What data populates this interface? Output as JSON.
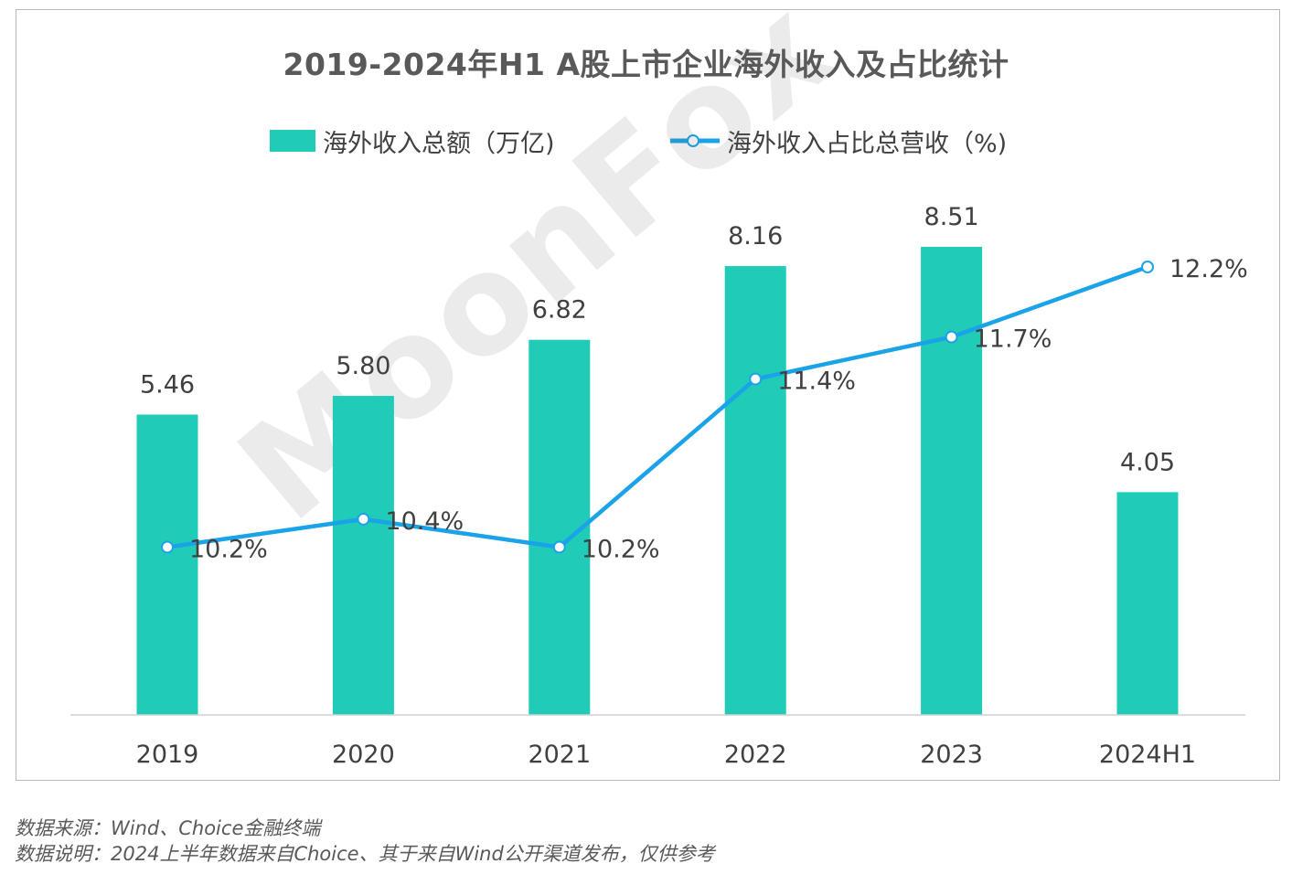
{
  "chart_data": {
    "type": "bar+line",
    "title": "2019-2024年H1 A股上市企业海外收入及占比统计",
    "categories": [
      "2019",
      "2020",
      "2021",
      "2022",
      "2023",
      "2024H1"
    ],
    "series": [
      {
        "name": "海外收入总额（万亿)",
        "type": "bar",
        "values": [
          5.46,
          5.8,
          6.82,
          8.16,
          8.51,
          4.05
        ],
        "labels": [
          "5.46",
          "5.80",
          "6.82",
          "8.16",
          "8.51",
          "4.05"
        ],
        "color": "#20cbb8"
      },
      {
        "name": "海外收入占比总营收（%)",
        "type": "line",
        "values": [
          10.2,
          10.4,
          10.2,
          11.4,
          11.7,
          12.2
        ],
        "labels": [
          "10.2%",
          "10.4%",
          "10.2%",
          "11.4%",
          "11.7%",
          "12.2%"
        ],
        "color": "#1aa3e8"
      }
    ],
    "grid": false,
    "legend_position": "top"
  },
  "watermark": "MoonFox",
  "notes": {
    "source": "数据来源：Wind、Choice金融终端",
    "description": "数据说明：2024上半年数据来自Choice、其于来自Wind公开渠道发布，仅供参考"
  }
}
